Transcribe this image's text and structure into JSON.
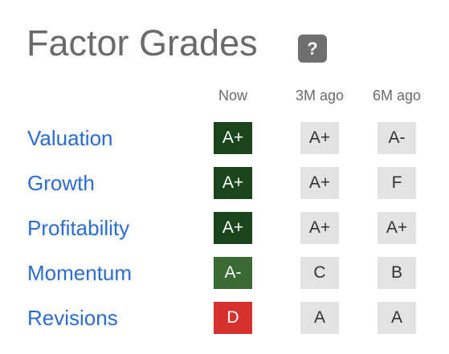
{
  "header": {
    "title": "Factor Grades",
    "help_icon": "?"
  },
  "columns": [
    "Now",
    "3M ago",
    "6M ago"
  ],
  "rows": [
    {
      "label": "Valuation",
      "grades": [
        "A+",
        "A+",
        "A-"
      ],
      "now_color": "#1b461d"
    },
    {
      "label": "Growth",
      "grades": [
        "A+",
        "A+",
        "F"
      ],
      "now_color": "#1b461d"
    },
    {
      "label": "Profitability",
      "grades": [
        "A+",
        "A+",
        "A+"
      ],
      "now_color": "#1b461d"
    },
    {
      "label": "Momentum",
      "grades": [
        "A-",
        "C",
        "B"
      ],
      "now_color": "#3a6b35"
    },
    {
      "label": "Revisions",
      "grades": [
        "D",
        "A",
        "A"
      ],
      "now_color": "#d5312f"
    }
  ]
}
